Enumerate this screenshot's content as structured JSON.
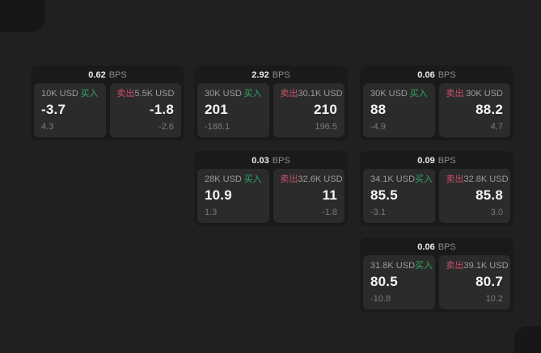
{
  "theme": {
    "page_bg": "#202020",
    "card_bg": "#1a1a1a",
    "panel_bg": "#2b2b2b",
    "deco_bg": "#171717",
    "green": "#2fa866",
    "red": "#c8506b",
    "text_primary": "#f5f5f5",
    "text_secondary": "#9c9c9c",
    "text_muted": "#7a7a7a"
  },
  "labels": {
    "bps": "BPS",
    "buy": "买入",
    "sell": "卖出"
  },
  "cards": [
    {
      "row": 1,
      "col": 1,
      "bps": "0.62",
      "buy": {
        "amount": "10K USD",
        "value": "-3.7",
        "sub": "4.3"
      },
      "sell": {
        "amount": "5.5K USD",
        "value": "-1.8",
        "sub": "-2.6"
      }
    },
    {
      "row": 1,
      "col": 2,
      "bps": "2.92",
      "buy": {
        "amount": "30K USD",
        "value": "201",
        "sub": "-188.1"
      },
      "sell": {
        "amount": "30.1K USD",
        "value": "210",
        "sub": "196.5"
      }
    },
    {
      "row": 1,
      "col": 3,
      "bps": "0.06",
      "buy": {
        "amount": "30K USD",
        "value": "88",
        "sub": "-4.9"
      },
      "sell": {
        "amount": "30K USD",
        "value": "88.2",
        "sub": "4.7"
      }
    },
    {
      "row": 2,
      "col": 2,
      "bps": "0.03",
      "buy": {
        "amount": "28K USD",
        "value": "10.9",
        "sub": "1.3"
      },
      "sell": {
        "amount": "32.6K USD",
        "value": "11",
        "sub": "-1.8"
      }
    },
    {
      "row": 2,
      "col": 3,
      "bps": "0.09",
      "buy": {
        "amount": "34.1K USD",
        "value": "85.5",
        "sub": "-3.1"
      },
      "sell": {
        "amount": "32.8K USD",
        "value": "85.8",
        "sub": "3.0"
      }
    },
    {
      "row": 3,
      "col": 3,
      "bps": "0.06",
      "buy": {
        "amount": "31.8K USD",
        "value": "80.5",
        "sub": "-10.8"
      },
      "sell": {
        "amount": "39.1K USD",
        "value": "80.7",
        "sub": "10.2"
      }
    }
  ]
}
